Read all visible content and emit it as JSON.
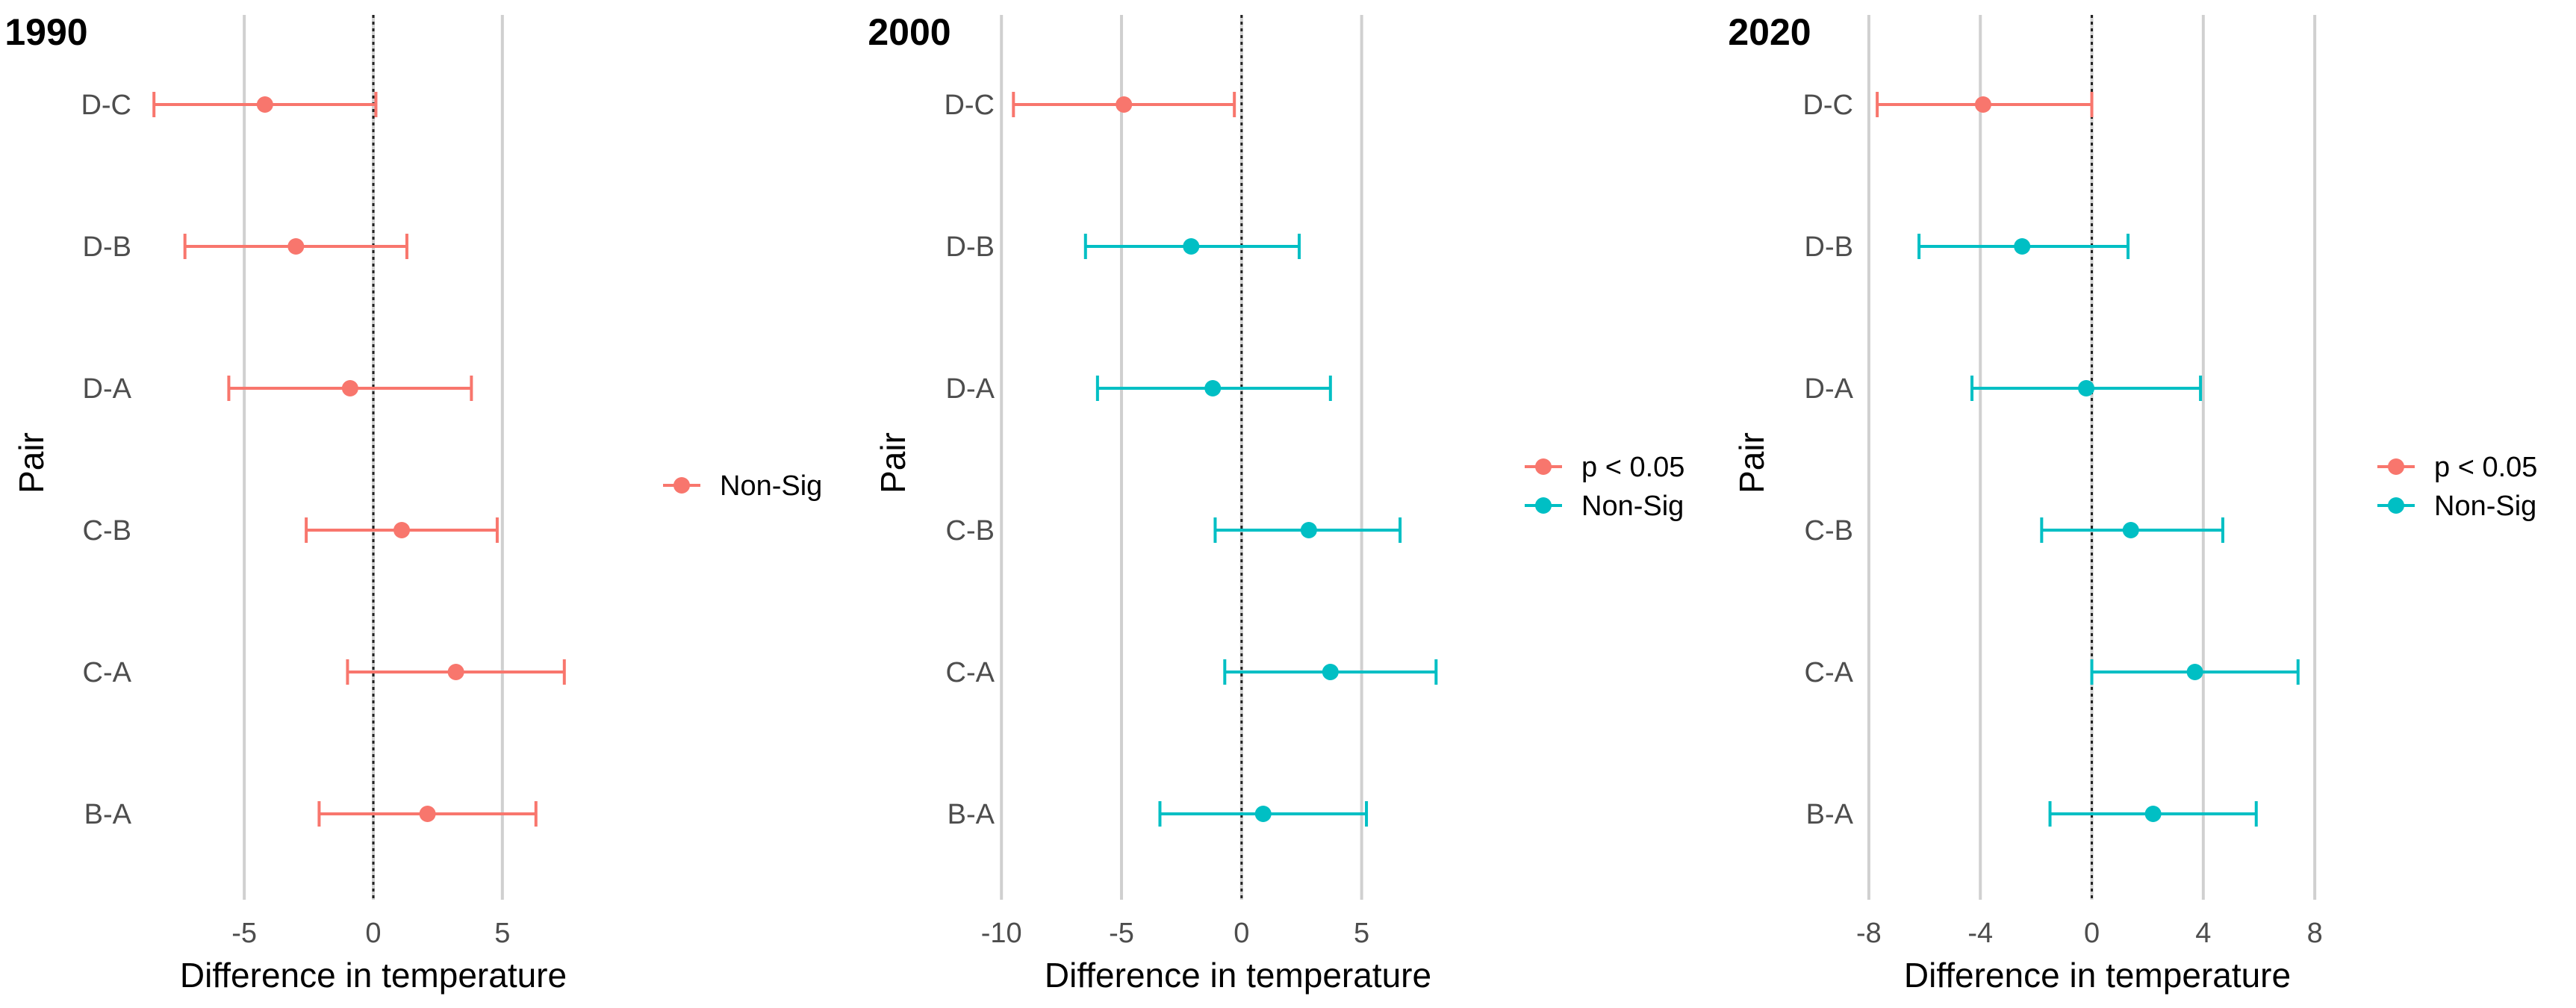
{
  "chart_data": [
    {
      "type": "forest",
      "title": "1990",
      "xlabel": "Difference in temperature",
      "ylabel": "Pair",
      "xlim": [
        -9.2,
        9.2
      ],
      "xticks": [
        -5,
        0,
        5
      ],
      "xtick_labels": [
        "-5",
        "0",
        "5"
      ],
      "reference_line": 0,
      "grid": "vertical major gridlines",
      "legend_position": "right",
      "legend": [
        {
          "label": "Non-Sig",
          "color": "#F8766D"
        }
      ],
      "categories": [
        "D-C",
        "D-B",
        "D-A",
        "C-B",
        "C-A",
        "B-A"
      ],
      "points": [
        {
          "pair": "D-C",
          "estimate": -4.2,
          "lower": -8.5,
          "upper": 0.1,
          "group": "Non-Sig",
          "color": "#F8766D"
        },
        {
          "pair": "D-B",
          "estimate": -3.0,
          "lower": -7.3,
          "upper": 1.3,
          "group": "Non-Sig",
          "color": "#F8766D"
        },
        {
          "pair": "D-A",
          "estimate": -0.9,
          "lower": -5.6,
          "upper": 3.8,
          "group": "Non-Sig",
          "color": "#F8766D"
        },
        {
          "pair": "C-B",
          "estimate": 1.1,
          "lower": -2.6,
          "upper": 4.8,
          "group": "Non-Sig",
          "color": "#F8766D"
        },
        {
          "pair": "C-A",
          "estimate": 3.2,
          "lower": -1.0,
          "upper": 7.4,
          "group": "Non-Sig",
          "color": "#F8766D"
        },
        {
          "pair": "B-A",
          "estimate": 2.1,
          "lower": -2.1,
          "upper": 6.3,
          "group": "Non-Sig",
          "color": "#F8766D"
        }
      ]
    },
    {
      "type": "forest",
      "title": "2000",
      "xlabel": "Difference in temperature",
      "ylabel": "Pair",
      "xlim": [
        -10.1,
        9.8
      ],
      "xticks": [
        -10,
        -5,
        0,
        5
      ],
      "xtick_labels": [
        "-10",
        "-5",
        "0",
        "5"
      ],
      "reference_line": 0,
      "grid": "vertical major gridlines",
      "legend_position": "right",
      "legend": [
        {
          "label": "p < 0.05",
          "color": "#F8766D"
        },
        {
          "label": "Non-Sig",
          "color": "#00BFC4"
        }
      ],
      "categories": [
        "D-C",
        "D-B",
        "D-A",
        "C-B",
        "C-A",
        "B-A"
      ],
      "points": [
        {
          "pair": "D-C",
          "estimate": -4.9,
          "lower": -9.5,
          "upper": -0.3,
          "group": "p < 0.05",
          "color": "#F8766D"
        },
        {
          "pair": "D-B",
          "estimate": -2.1,
          "lower": -6.5,
          "upper": 2.4,
          "group": "Non-Sig",
          "color": "#00BFC4"
        },
        {
          "pair": "D-A",
          "estimate": -1.2,
          "lower": -6.0,
          "upper": 3.7,
          "group": "Non-Sig",
          "color": "#00BFC4"
        },
        {
          "pair": "C-B",
          "estimate": 2.8,
          "lower": -1.1,
          "upper": 6.6,
          "group": "Non-Sig",
          "color": "#00BFC4"
        },
        {
          "pair": "C-A",
          "estimate": 3.7,
          "lower": -0.7,
          "upper": 8.1,
          "group": "Non-Sig",
          "color": "#00BFC4"
        },
        {
          "pair": "B-A",
          "estimate": 0.9,
          "lower": -3.4,
          "upper": 5.2,
          "group": "Non-Sig",
          "color": "#00BFC4"
        }
      ]
    },
    {
      "type": "forest",
      "title": "2020",
      "xlabel": "Difference in temperature",
      "ylabel": "Pair",
      "xlim": [
        -8.4,
        8.8
      ],
      "xticks": [
        -8,
        -4,
        0,
        4,
        8
      ],
      "xtick_labels": [
        "-8",
        "-4",
        "0",
        "4",
        "8"
      ],
      "reference_line": 0,
      "grid": "vertical major gridlines",
      "legend_position": "right",
      "legend": [
        {
          "label": "p < 0.05",
          "color": "#F8766D"
        },
        {
          "label": "Non-Sig",
          "color": "#00BFC4"
        }
      ],
      "categories": [
        "D-C",
        "D-B",
        "D-A",
        "C-B",
        "C-A",
        "B-A"
      ],
      "points": [
        {
          "pair": "D-C",
          "estimate": -3.9,
          "lower": -7.7,
          "upper": 0.0,
          "group": "p < 0.05",
          "color": "#F8766D"
        },
        {
          "pair": "D-B",
          "estimate": -2.5,
          "lower": -6.2,
          "upper": 1.3,
          "group": "Non-Sig",
          "color": "#00BFC4"
        },
        {
          "pair": "D-A",
          "estimate": -0.2,
          "lower": -4.3,
          "upper": 3.9,
          "group": "Non-Sig",
          "color": "#00BFC4"
        },
        {
          "pair": "C-B",
          "estimate": 1.4,
          "lower": -1.8,
          "upper": 4.7,
          "group": "Non-Sig",
          "color": "#00BFC4"
        },
        {
          "pair": "C-A",
          "estimate": 3.7,
          "lower": 0.0,
          "upper": 7.4,
          "group": "Non-Sig",
          "color": "#00BFC4"
        },
        {
          "pair": "B-A",
          "estimate": 2.2,
          "lower": -1.5,
          "upper": 5.9,
          "group": "Non-Sig",
          "color": "#00BFC4"
        }
      ]
    }
  ]
}
